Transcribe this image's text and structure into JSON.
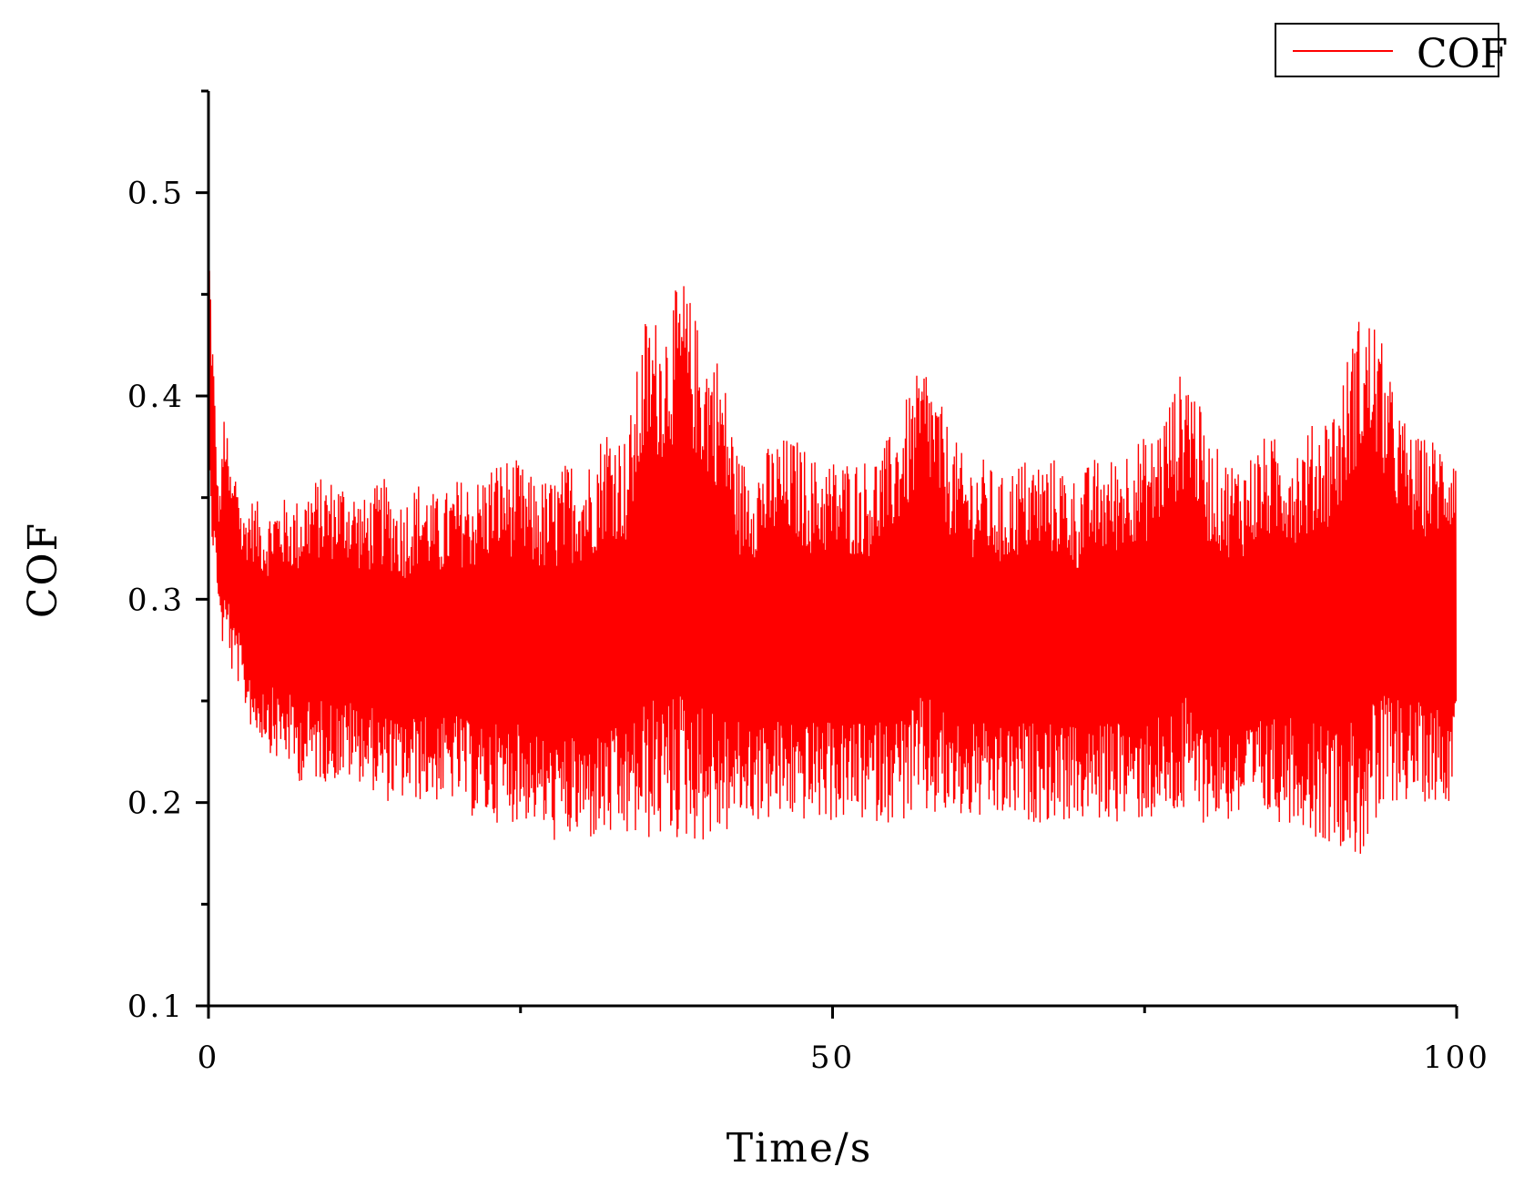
{
  "chart_data": {
    "type": "line",
    "title": "",
    "xlabel": "Time/s",
    "ylabel": "COF",
    "xlim": [
      0,
      100
    ],
    "ylim": [
      0.1,
      0.55
    ],
    "x_ticks": [
      0,
      50,
      100
    ],
    "x_tick_labels": [
      "0",
      "50",
      "100"
    ],
    "x_minor_ticks": [
      25,
      75
    ],
    "y_ticks": [
      0.1,
      0.2,
      0.3,
      0.4,
      0.5
    ],
    "y_tick_labels": [
      "0.1",
      "0.2",
      "0.3",
      "0.4",
      "0.5"
    ],
    "y_minor_ticks": [
      0.15,
      0.25,
      0.35,
      0.45,
      0.55
    ],
    "grid": false,
    "legend": {
      "position": "top-right",
      "entries": [
        "COF"
      ]
    },
    "series": [
      {
        "name": "COF",
        "color": "#ff0000",
        "x": [
          0,
          0.1,
          0.25,
          0.4,
          0.6,
          0.8,
          1.0,
          1.3,
          1.6,
          1.9,
          2.3,
          2.7,
          3.2,
          3.8,
          4.5,
          5.3,
          6.2,
          7.2,
          8.3,
          9.5,
          11,
          12.5,
          14,
          15.5,
          17,
          18.5,
          20,
          21.5,
          23,
          24.5,
          26,
          27.5,
          29,
          30.5,
          32,
          33.5,
          35,
          36.5,
          38,
          39.5,
          41,
          42.5,
          44,
          45.5,
          47,
          48.5,
          50,
          51.5,
          53,
          54.5,
          56,
          57.5,
          59,
          60.5,
          62,
          63.5,
          65,
          66.5,
          68,
          69.5,
          71,
          72.5,
          74,
          75.5,
          77,
          78.5,
          80,
          81.5,
          83,
          84.5,
          86,
          87.5,
          89,
          90.5,
          92,
          93.5,
          95,
          96.5,
          98,
          99.5,
          100
        ],
        "upper": [
          0.48,
          0.47,
          0.44,
          0.42,
          0.38,
          0.35,
          0.36,
          0.4,
          0.37,
          0.36,
          0.37,
          0.34,
          0.35,
          0.35,
          0.34,
          0.35,
          0.35,
          0.35,
          0.36,
          0.36,
          0.36,
          0.35,
          0.36,
          0.35,
          0.36,
          0.35,
          0.36,
          0.36,
          0.37,
          0.37,
          0.36,
          0.36,
          0.37,
          0.37,
          0.39,
          0.38,
          0.44,
          0.44,
          0.46,
          0.43,
          0.42,
          0.37,
          0.37,
          0.38,
          0.38,
          0.37,
          0.37,
          0.37,
          0.37,
          0.38,
          0.4,
          0.42,
          0.39,
          0.37,
          0.37,
          0.36,
          0.37,
          0.37,
          0.37,
          0.36,
          0.37,
          0.37,
          0.38,
          0.38,
          0.4,
          0.42,
          0.38,
          0.37,
          0.37,
          0.38,
          0.38,
          0.38,
          0.39,
          0.4,
          0.44,
          0.44,
          0.4,
          0.38,
          0.38,
          0.38,
          0.38
        ],
        "lower": [
          0.38,
          0.37,
          0.33,
          0.32,
          0.31,
          0.3,
          0.28,
          0.27,
          0.28,
          0.26,
          0.26,
          0.25,
          0.24,
          0.23,
          0.23,
          0.22,
          0.22,
          0.21,
          0.21,
          0.21,
          0.21,
          0.21,
          0.2,
          0.2,
          0.2,
          0.2,
          0.2,
          0.19,
          0.19,
          0.19,
          0.19,
          0.18,
          0.18,
          0.18,
          0.18,
          0.18,
          0.18,
          0.18,
          0.18,
          0.18,
          0.18,
          0.19,
          0.19,
          0.19,
          0.19,
          0.19,
          0.19,
          0.19,
          0.19,
          0.19,
          0.19,
          0.19,
          0.19,
          0.19,
          0.19,
          0.19,
          0.19,
          0.19,
          0.19,
          0.19,
          0.19,
          0.19,
          0.19,
          0.19,
          0.19,
          0.19,
          0.19,
          0.19,
          0.19,
          0.19,
          0.19,
          0.19,
          0.18,
          0.18,
          0.17,
          0.18,
          0.2,
          0.2,
          0.2,
          0.2,
          0.25
        ],
        "last_value": 0.25
      }
    ]
  }
}
